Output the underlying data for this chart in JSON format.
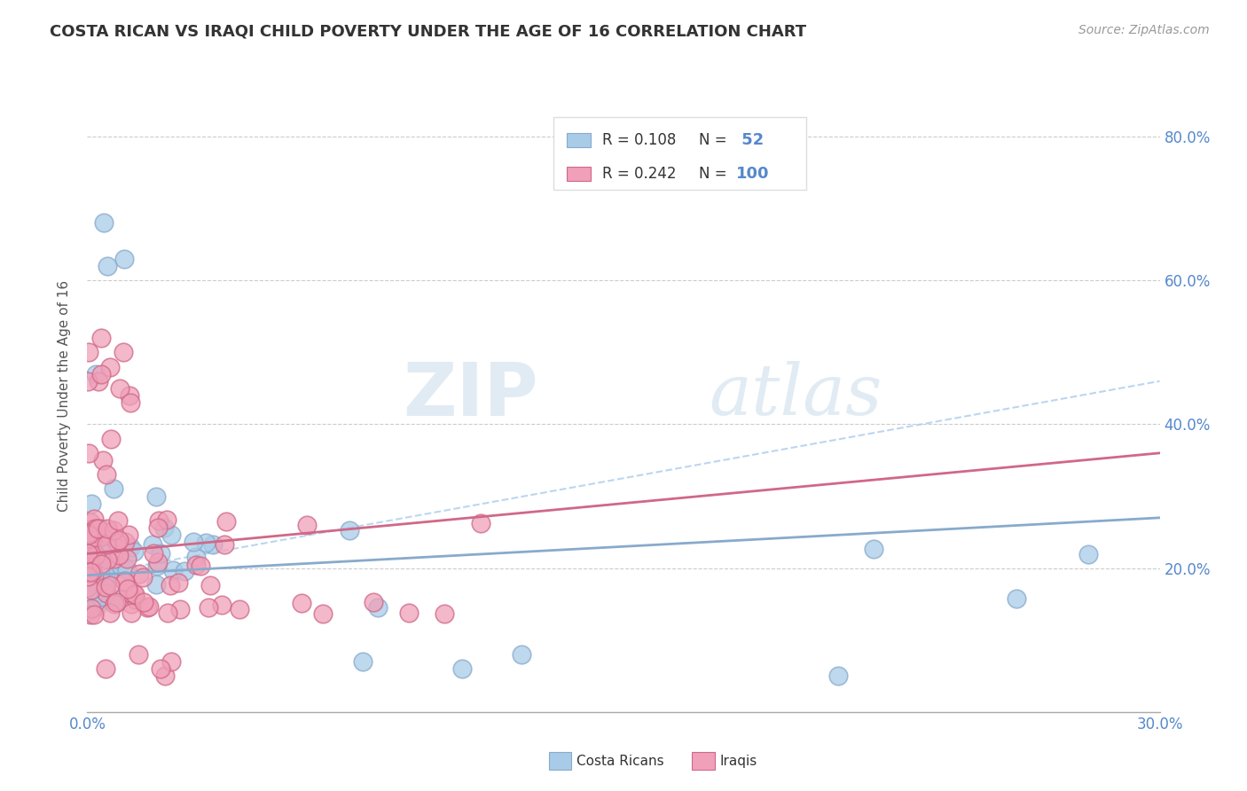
{
  "title": "COSTA RICAN VS IRAQI CHILD POVERTY UNDER THE AGE OF 16 CORRELATION CHART",
  "source": "Source: ZipAtlas.com",
  "ylabel": "Child Poverty Under the Age of 16",
  "legend_labels": [
    "Costa Ricans",
    "Iraqis"
  ],
  "legend_r": [
    0.108,
    0.242
  ],
  "legend_n": [
    52,
    100
  ],
  "color_blue": "#A8CCE8",
  "color_pink": "#F0A0B8",
  "edge_blue": "#88AACC",
  "edge_pink": "#D06888",
  "line_blue": "#88AACC",
  "line_pink": "#D06888",
  "line_dashed": "#AACCEE",
  "ytick_labels": [
    "20.0%",
    "40.0%",
    "60.0%",
    "80.0%"
  ],
  "ytick_values": [
    0.2,
    0.4,
    0.6,
    0.8
  ],
  "watermark_zip": "ZIP",
  "watermark_atlas": "atlas",
  "background_color": "#FFFFFF",
  "xlim": [
    0.0,
    0.3
  ],
  "ylim": [
    0.0,
    0.88
  ],
  "title_color": "#333333",
  "source_color": "#999999",
  "tick_color": "#5588CC",
  "ylabel_color": "#555555",
  "grid_color": "#CCCCCC",
  "legend_border_color": "#DDDDDD"
}
